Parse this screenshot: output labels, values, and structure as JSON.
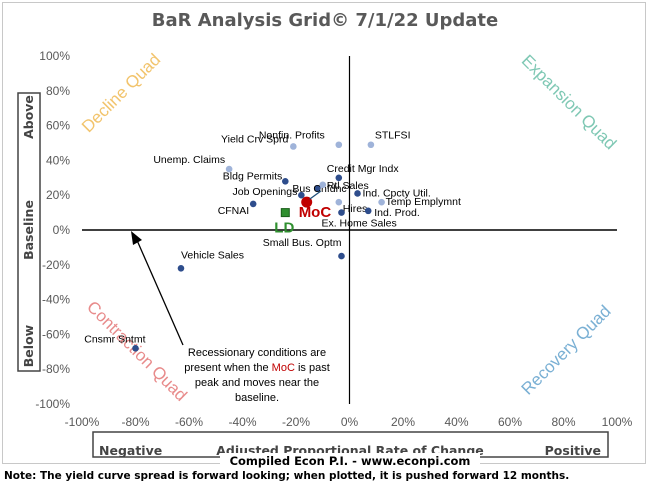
{
  "title": "BaR Analysis Grid© 7/1/22 Update",
  "note": "Note: The yield curve spread is forward looking; when plotted, it is pushed forward 12 months.",
  "compiled": "Compiled Econ P.I. - www.econpi.com",
  "axis": {
    "x_center": "Adjusted Proportional Rate of Change",
    "x_left": "Negative",
    "x_right": "Positive",
    "y_top": "Above",
    "y_mid": "Baseline",
    "y_bottom": "Below"
  },
  "quadrants": {
    "top_left": "Decline Quad",
    "top_right": "Expansion Quad",
    "bottom_left": "Contraction Quad",
    "bottom_right": "Recovery Quad"
  },
  "annotation": {
    "line1": "Recessionary conditions are",
    "line2_pre": "present when the ",
    "line2_hl": "MoC",
    "line2_post": " is past",
    "line3": "peak and moves near the",
    "line4": "baseline."
  },
  "colors": {
    "dark_point": "#2e4d8c",
    "light_point": "#9fb3d9",
    "moc": "#c00000",
    "ld": "#2f8f2f",
    "decline": "#f2c46d",
    "expansion": "#7fc8b4",
    "contraction": "#e88b8b",
    "recovery": "#7ab0d4"
  },
  "chart_data": {
    "type": "scatter",
    "xlim": [
      -100,
      100
    ],
    "ylim": [
      -100,
      100
    ],
    "x_ticks": [
      "-100%",
      "-80%",
      "-60%",
      "-40%",
      "-20%",
      "0%",
      "20%",
      "40%",
      "60%",
      "80%",
      "100%"
    ],
    "y_ticks": [
      "100%",
      "80%",
      "60%",
      "40%",
      "20%",
      "0%",
      "-20%",
      "-40%",
      "-60%",
      "-80%",
      "-100%"
    ],
    "points": [
      {
        "label": "Nonfin. Profits",
        "x": -4,
        "y": 49,
        "tone": "light"
      },
      {
        "label": "STLFSI",
        "x": 8,
        "y": 49,
        "tone": "light"
      },
      {
        "label": "Yield Crv Sprd",
        "x": -21,
        "y": 48,
        "tone": "light"
      },
      {
        "label": "Unemp. Claims",
        "x": -45,
        "y": 35,
        "tone": "light"
      },
      {
        "label": "Credit Mgr Indx",
        "x": -4,
        "y": 30,
        "tone": "dark"
      },
      {
        "label": "Bldg Permits",
        "x": -24,
        "y": 28,
        "tone": "dark"
      },
      {
        "label": "Bus Cnfdnc",
        "x": -12,
        "y": 24,
        "tone": "dark"
      },
      {
        "label": "Rtl Sales",
        "x": -10,
        "y": 26,
        "tone": "light"
      },
      {
        "label": "Ind. Cpcty Util.",
        "x": 3,
        "y": 21,
        "tone": "dark"
      },
      {
        "label": "Job Openings",
        "x": -18,
        "y": 20,
        "tone": "dark"
      },
      {
        "label": "Temp Emplymnt",
        "x": 12,
        "y": 16,
        "tone": "light"
      },
      {
        "label": "Hires",
        "x": -4,
        "y": 16,
        "tone": "light"
      },
      {
        "label": "Ind. Prod.",
        "x": 7,
        "y": 11,
        "tone": "dark"
      },
      {
        "label": "CFNAI",
        "x": -36,
        "y": 15,
        "tone": "dark"
      },
      {
        "label": "Ex. Home Sales",
        "x": -3,
        "y": 10,
        "tone": "dark"
      },
      {
        "label": "Small Bus. Optm",
        "x": -3,
        "y": -15,
        "tone": "dark"
      },
      {
        "label": "Vehicle Sales",
        "x": -63,
        "y": -22,
        "tone": "dark"
      },
      {
        "label": "Cnsmr Sntmt",
        "x": -80,
        "y": -68,
        "tone": "dark"
      }
    ],
    "moc": {
      "label": "MoC",
      "x": -16,
      "y": 16
    },
    "ld": {
      "label": "LD",
      "x": -24,
      "y": 10
    }
  }
}
